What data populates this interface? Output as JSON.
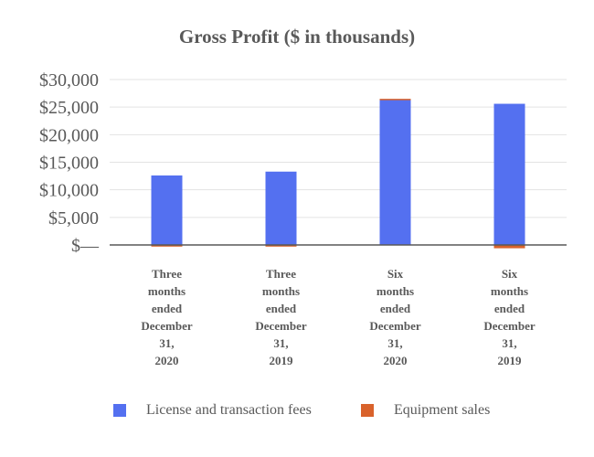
{
  "chart_data": {
    "type": "bar",
    "stacked": true,
    "title": "Gross Profit ($ in thousands)",
    "xlabel": "",
    "ylabel": "",
    "categories": [
      [
        "Three",
        "months",
        "ended",
        "December",
        "31,",
        "2020"
      ],
      [
        "Three",
        "months",
        "ended",
        "December",
        "31,",
        "2019"
      ],
      [
        "Six",
        "months",
        "ended",
        "December",
        "31,",
        "2020"
      ],
      [
        "Six",
        "months",
        "ended",
        "December",
        "31,",
        "2019"
      ]
    ],
    "series": [
      {
        "name": "License and transaction fees",
        "color": "#5470f0",
        "values": [
          12600,
          13300,
          26300,
          25600
        ]
      },
      {
        "name": "Equipment sales",
        "color": "#d9622b",
        "values": [
          -300,
          -300,
          200,
          -600
        ]
      }
    ],
    "ylim": [
      -2000,
      30000
    ],
    "yticks": [
      0,
      5000,
      10000,
      15000,
      20000,
      25000,
      30000
    ],
    "ytick_labels": [
      "$—",
      "$5,000",
      "$10,000",
      "$15,000",
      "$20,000",
      "$25,000",
      "$30,000"
    ],
    "grid": true,
    "legend_position": "bottom"
  }
}
